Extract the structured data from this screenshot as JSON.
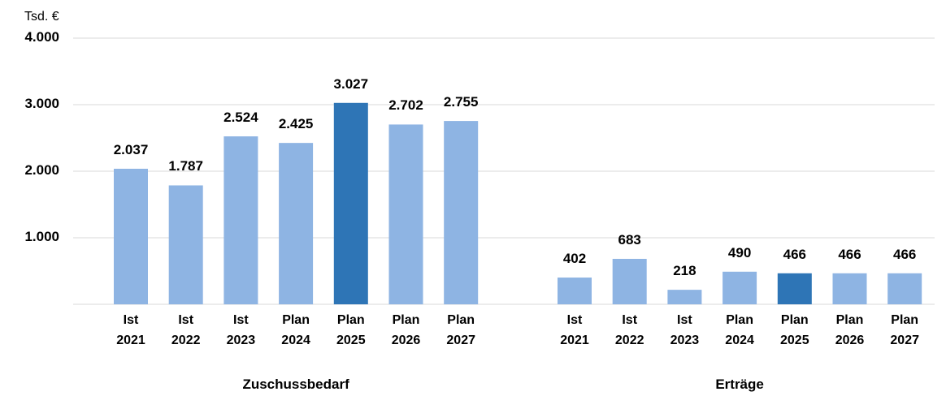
{
  "chart_data": {
    "type": "bar",
    "y_unit": "Tsd. €",
    "categories": [
      "Ist 2021",
      "Ist 2022",
      "Ist 2023",
      "Plan 2024",
      "Plan 2025",
      "Plan 2026",
      "Plan 2027"
    ],
    "groups": [
      {
        "name": "Zuschussbedarf",
        "values": [
          2037,
          1787,
          2524,
          2425,
          3027,
          2702,
          2755
        ],
        "value_labels": [
          "2.037",
          "1.787",
          "2.524",
          "2.425",
          "3.027",
          "2.702",
          "2.755"
        ],
        "colors": [
          "#8eb4e3",
          "#8eb4e3",
          "#8eb4e3",
          "#8eb4e3",
          "#2e75b6",
          "#8eb4e3",
          "#8eb4e3"
        ]
      },
      {
        "name": "Erträge",
        "values": [
          402,
          683,
          218,
          490,
          466,
          466,
          466
        ],
        "colors": [
          "#8eb4e3",
          "#8eb4e3",
          "#8eb4e3",
          "#8eb4e3",
          "#2e75b6",
          "#8eb4e3",
          "#8eb4e3"
        ]
      }
    ],
    "ylim": [
      0,
      4000
    ],
    "yticks": [
      {
        "value": 1000,
        "label": "1.000"
      },
      {
        "value": 2000,
        "label": "2.000"
      },
      {
        "value": 3000,
        "label": "3.000"
      },
      {
        "value": 4000,
        "label": "4.000"
      }
    ],
    "grid": true
  }
}
